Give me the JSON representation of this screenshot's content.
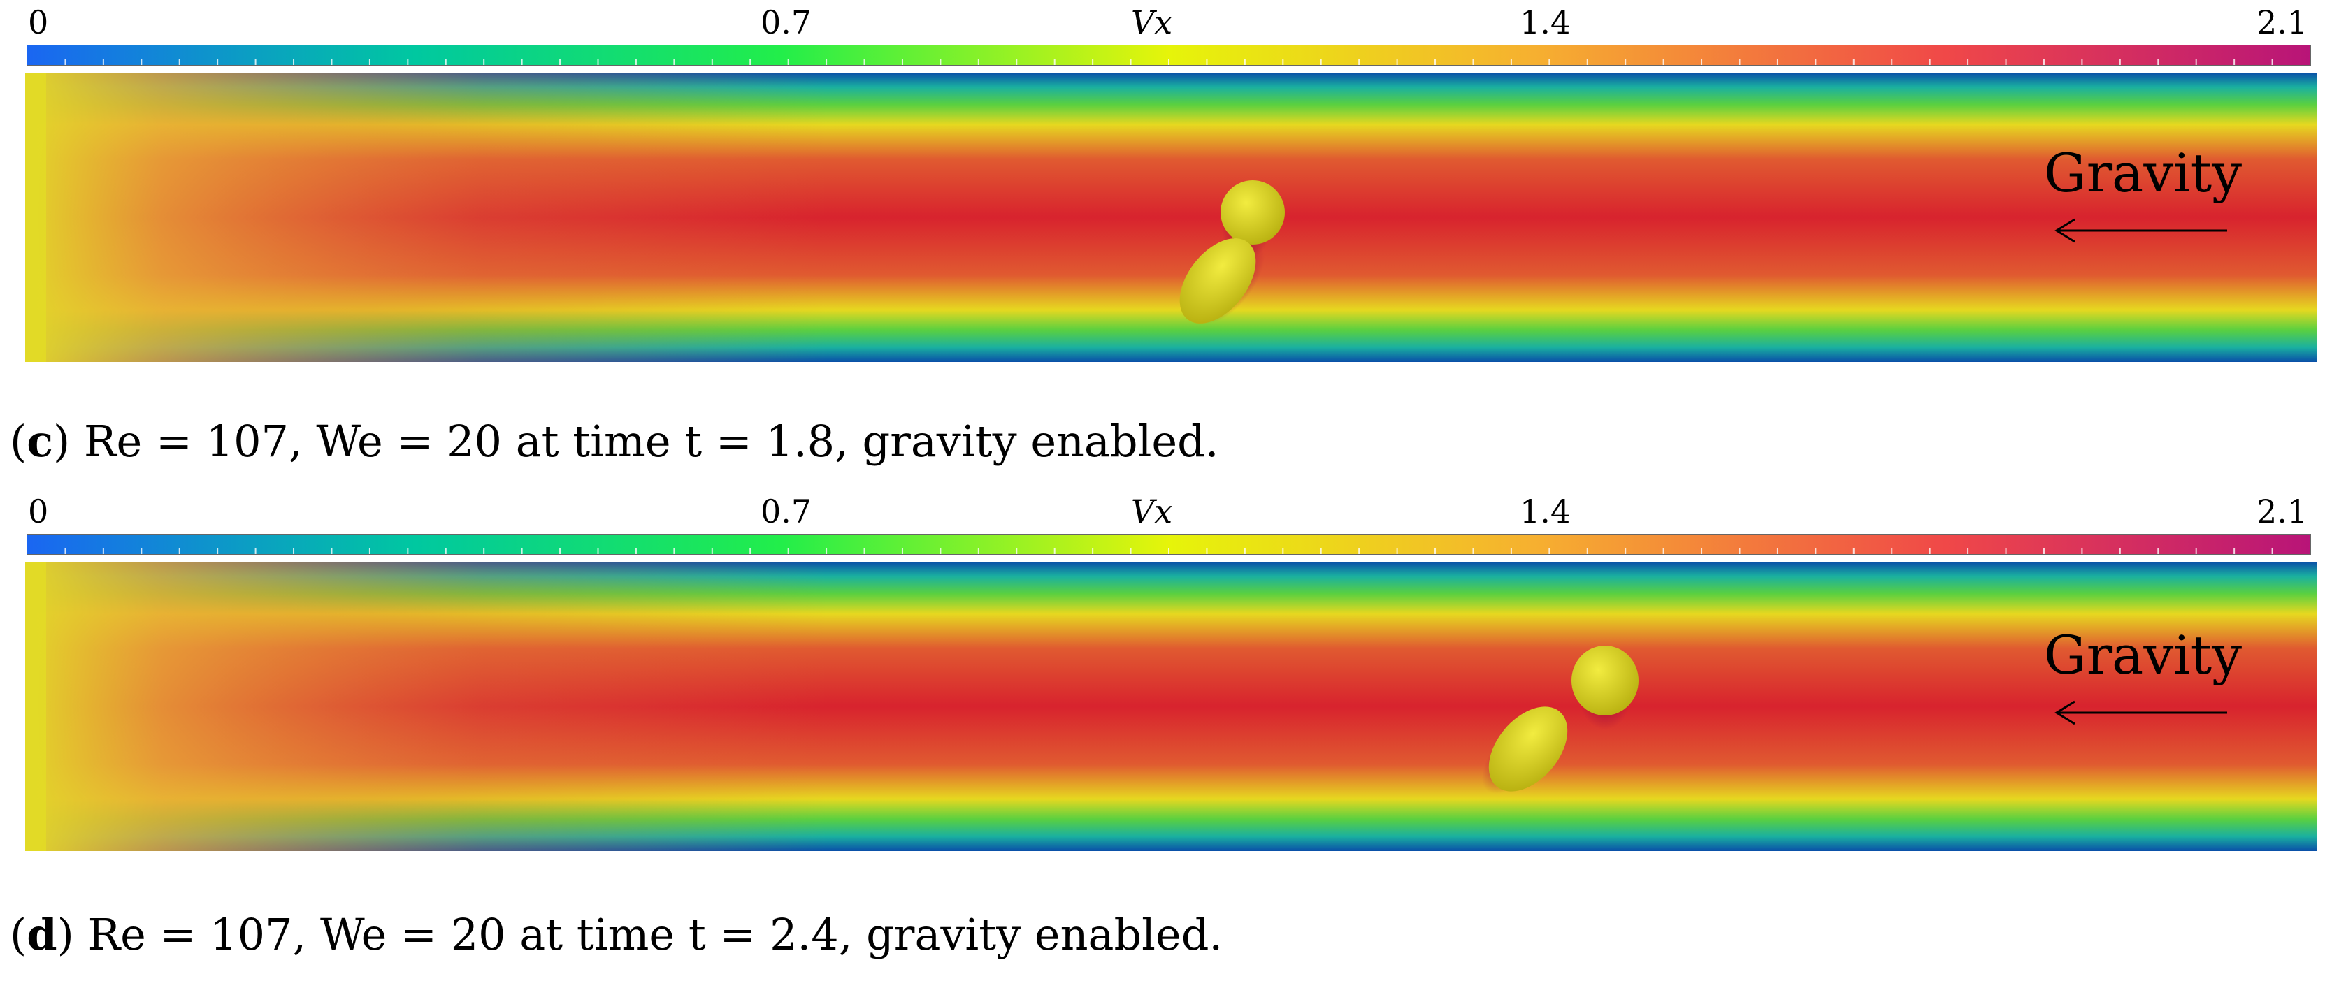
{
  "colors": {
    "colormap": [
      "#1a66f2",
      "#00c8a0",
      "#22ee4a",
      "#e6f40a",
      "#f6b030",
      "#f04848",
      "#b81478"
    ],
    "droplet": "#e2dc20"
  },
  "panels": [
    {
      "colorbar": {
        "title": "Vx",
        "min_label": "0",
        "tick1_label": "0.7",
        "tick2_label": "1.4",
        "max_label": "2.1"
      },
      "gravity_label": "Gravity",
      "caption": {
        "letter": "c",
        "text": " Re = 107, We = 20 at time t = 1.8, gravity enabled."
      }
    },
    {
      "colorbar": {
        "title": "Vx",
        "min_label": "0",
        "tick1_label": "0.7",
        "tick2_label": "1.4",
        "max_label": "2.1"
      },
      "gravity_label": "Gravity",
      "caption": {
        "letter": "d",
        "text": " Re = 107, We = 20 at time t = 2.4, gravity enabled."
      }
    }
  ]
}
